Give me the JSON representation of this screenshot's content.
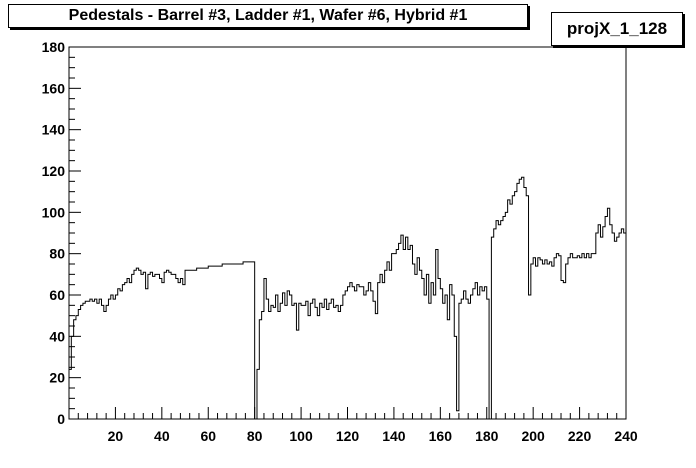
{
  "header": {
    "title": "Pedestals - Barrel #3, Ladder #1, Wafer #6, Hybrid #1",
    "stats_name": "projX_1_128"
  },
  "chart_data": {
    "type": "line",
    "title": "Pedestals - Barrel #3, Ladder #1, Wafer #6, Hybrid #1",
    "series_name": "projX_1_128",
    "xlabel": "",
    "ylabel": "",
    "xlim": [
      0,
      240
    ],
    "ylim": [
      0,
      180
    ],
    "grid": false,
    "x_ticks": [
      20,
      40,
      60,
      80,
      100,
      120,
      140,
      160,
      180,
      200,
      220,
      240
    ],
    "y_ticks": [
      0,
      20,
      40,
      60,
      80,
      100,
      120,
      140,
      160,
      180
    ],
    "x_start": 0,
    "bin_width": 1,
    "values": [
      24,
      40,
      48,
      50,
      53,
      55,
      56,
      57,
      57,
      58,
      57,
      58,
      56,
      58,
      55,
      52,
      55,
      58,
      60,
      58,
      60,
      63,
      62,
      65,
      66,
      68,
      66,
      70,
      72,
      73,
      72,
      70,
      71,
      63,
      70,
      71,
      69,
      70,
      70,
      68,
      66,
      71,
      72,
      71,
      70,
      70,
      68,
      66,
      68,
      65,
      72,
      72,
      72,
      72,
      72,
      73,
      73,
      73,
      73,
      73,
      74,
      74,
      74,
      74,
      74,
      74,
      75,
      75,
      75,
      75,
      75,
      75,
      75,
      75,
      75,
      76,
      76,
      76,
      76,
      76,
      0,
      24,
      48,
      52,
      68,
      58,
      52,
      55,
      54,
      60,
      52,
      56,
      61,
      55,
      62,
      60,
      55,
      56,
      43,
      56,
      55,
      55,
      57,
      50,
      56,
      58,
      54,
      50,
      56,
      54,
      58,
      53,
      56,
      58,
      54,
      55,
      52,
      55,
      60,
      62,
      64,
      66,
      64,
      62,
      65,
      64,
      64,
      60,
      62,
      66,
      62,
      57,
      51,
      66,
      70,
      66,
      72,
      76,
      72,
      80,
      80,
      82,
      85,
      89,
      82,
      88,
      82,
      84,
      75,
      70,
      78,
      72,
      68,
      60,
      70,
      56,
      66,
      60,
      82,
      68,
      63,
      56,
      60,
      48,
      65,
      60,
      40,
      4,
      56,
      58,
      62,
      58,
      56,
      60,
      63,
      66,
      60,
      64,
      62,
      64,
      58,
      0,
      88,
      92,
      96,
      94,
      96,
      98,
      100,
      106,
      104,
      108,
      110,
      114,
      116,
      117,
      112,
      108,
      60,
      75,
      78,
      74,
      78,
      77,
      75,
      77,
      75,
      76,
      74,
      78,
      80,
      79,
      67,
      66,
      75,
      78,
      80,
      78,
      78,
      79,
      78,
      80,
      78,
      80,
      78,
      80,
      80,
      90,
      94,
      88,
      93,
      98,
      102,
      94,
      90,
      86,
      88,
      90,
      92,
      90
    ]
  }
}
